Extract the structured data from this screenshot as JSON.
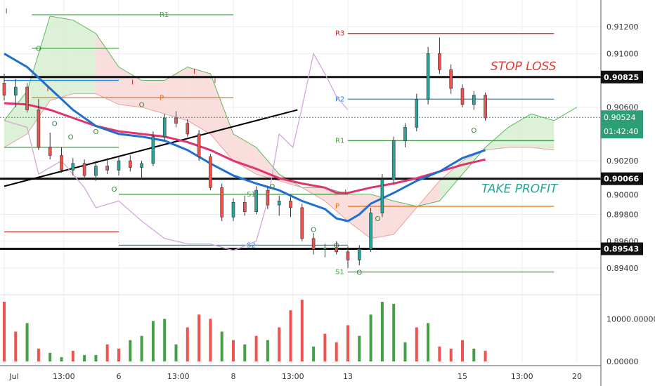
{
  "chart_data": {
    "type": "candlestick",
    "price_axis": {
      "range": [
        0.892,
        0.914
      ],
      "ticks": [
        "0.91200",
        "0.91000",
        "0.90600",
        "0.90200",
        "0.89800",
        "0.89600",
        "0.89400"
      ],
      "tick_values": [
        0.912,
        0.91,
        0.906,
        0.902,
        0.898,
        0.896,
        0.894
      ],
      "partial_tick": "0.90000",
      "partial_tick_value": 0.9
    },
    "volume_axis": {
      "ticks": [
        "10000.00000",
        "0.00000"
      ],
      "tick_values": [
        10000,
        0
      ],
      "max": 14000
    },
    "time_axis": {
      "labels": [
        "Jul",
        "13:00",
        "6",
        "13:00",
        "8",
        "13:00",
        "13",
        "15",
        "13:00",
        "20"
      ],
      "positions": [
        0,
        2.6,
        5.0,
        7.6,
        10.0,
        12.6,
        15.0,
        20.0,
        22.6,
        25.0
      ]
    },
    "current_price": {
      "value": 0.90524,
      "label": "0.90524",
      "countdown": "01:42:40"
    },
    "horizontal_levels": [
      {
        "name": "stop-loss-level",
        "value": 0.90825,
        "label": "0.90825",
        "text": "STOP LOSS",
        "color": "#e53935"
      },
      {
        "name": "take-profit-level",
        "value": 0.90066,
        "label": "0.90066",
        "text": "TAKE PROFIT",
        "color": "#26a69a"
      },
      {
        "name": "support-level",
        "value": 0.89543,
        "label": "0.89543",
        "text": "",
        "color": "#000000"
      }
    ],
    "pivot_levels": [
      {
        "label": "R1",
        "value": 0.9129,
        "x0": 1.2,
        "x1": 10.0,
        "color": "#43a047"
      },
      {
        "label": "",
        "value": 0.9104,
        "x0": 1.2,
        "x1": 5.0,
        "color": "#43a047"
      },
      {
        "label": "P",
        "value": 0.9067,
        "x0": 1.2,
        "x1": 10.0,
        "color": "#ef6c00"
      },
      {
        "label": "",
        "value": 0.908,
        "x0": 0,
        "x1": 5.0,
        "color": "#1e88e5"
      },
      {
        "label": "",
        "value": 0.903,
        "x0": 0,
        "x1": 5.0,
        "color": "#43a047"
      },
      {
        "label": "",
        "value": 0.9007,
        "x0": 0,
        "x1": 5.0,
        "color": "#1e88e5"
      },
      {
        "label": "S1",
        "value": 0.8995,
        "x0": 5.0,
        "x1": 15.0,
        "color": "#43a047"
      },
      {
        "label": "",
        "value": 0.8967,
        "x0": 0,
        "x1": 5.0,
        "color": "#c62828"
      },
      {
        "label": "S2",
        "value": 0.8957,
        "x0": 5.0,
        "x1": 15.0,
        "color": "#1e88e5"
      },
      {
        "label": "R3",
        "value": 0.9115,
        "x0": 15.0,
        "x1": 24.0,
        "color": "#c62828"
      },
      {
        "label": "R2",
        "value": 0.9066,
        "x0": 15.0,
        "x1": 24.0,
        "color": "#1e88e5"
      },
      {
        "label": "R1",
        "value": 0.9035,
        "x0": 15.0,
        "x1": 24.0,
        "color": "#43a047"
      },
      {
        "label": "P",
        "value": 0.8986,
        "x0": 15.0,
        "x1": 24.0,
        "color": "#ef6c00"
      },
      {
        "label": "S1",
        "value": 0.8937,
        "x0": 15.0,
        "x1": 24.0,
        "color": "#43a047"
      }
    ],
    "trendline": {
      "x0": 0,
      "y0": 0.9001,
      "x1": 12.8,
      "y1": 0.9058,
      "color": "#000000"
    },
    "ohlc": [
      [
        0.9078,
        0.9085,
        0.9065,
        0.9069
      ],
      [
        0.9069,
        0.9081,
        0.906,
        0.9075
      ],
      [
        0.9075,
        0.9078,
        0.9056,
        0.9058
      ],
      [
        0.9058,
        0.9066,
        0.9028,
        0.903
      ],
      [
        0.903,
        0.9041,
        0.9021,
        0.9024
      ],
      [
        0.9024,
        0.903,
        0.9011,
        0.9013
      ],
      [
        0.9013,
        0.9022,
        0.9009,
        0.9018
      ],
      [
        0.9018,
        0.9021,
        0.9006,
        0.9009
      ],
      [
        0.9009,
        0.902,
        0.9005,
        0.9016
      ],
      [
        0.9016,
        0.9022,
        0.901,
        0.9013
      ],
      [
        0.9013,
        0.9024,
        0.9009,
        0.902
      ],
      [
        0.902,
        0.9024,
        0.9012,
        0.9015
      ],
      [
        0.9015,
        0.902,
        0.9007,
        0.9018
      ],
      [
        0.9018,
        0.9042,
        0.9016,
        0.9038
      ],
      [
        0.9038,
        0.9055,
        0.9035,
        0.9052
      ],
      [
        0.9052,
        0.9057,
        0.9045,
        0.9048
      ],
      [
        0.9048,
        0.9051,
        0.9038,
        0.904
      ],
      [
        0.904,
        0.9043,
        0.902,
        0.9023
      ],
      [
        0.9023,
        0.9025,
        0.8998,
        0.9
      ],
      [
        0.9,
        0.9003,
        0.8975,
        0.8978
      ],
      [
        0.8978,
        0.8992,
        0.8975,
        0.8989
      ],
      [
        0.8989,
        0.8994,
        0.8979,
        0.8982
      ],
      [
        0.8982,
        0.9001,
        0.898,
        0.8998
      ],
      [
        0.8998,
        0.9,
        0.8984,
        0.8987
      ],
      [
        0.8987,
        0.8994,
        0.8979,
        0.899
      ],
      [
        0.899,
        0.8993,
        0.8978,
        0.8985
      ],
      [
        0.8985,
        0.8988,
        0.896,
        0.8962
      ],
      [
        0.8962,
        0.8966,
        0.895,
        0.8954
      ],
      [
        0.8954,
        0.8958,
        0.8948,
        0.8955
      ],
      [
        0.8955,
        0.896,
        0.895,
        0.8952
      ],
      [
        0.8952,
        0.8956,
        0.894,
        0.8946
      ],
      [
        0.8946,
        0.8957,
        0.8942,
        0.8954
      ],
      [
        0.8954,
        0.8985,
        0.8952,
        0.8981
      ],
      [
        0.8981,
        0.901,
        0.8978,
        0.9006
      ],
      [
        0.9006,
        0.9038,
        0.9003,
        0.9035
      ],
      [
        0.9035,
        0.9048,
        0.903,
        0.9045
      ],
      [
        0.9045,
        0.907,
        0.9042,
        0.9066
      ],
      [
        0.9066,
        0.9105,
        0.9062,
        0.91
      ],
      [
        0.91,
        0.9112,
        0.9085,
        0.9088
      ],
      [
        0.9088,
        0.9092,
        0.907,
        0.9074
      ],
      [
        0.9074,
        0.9077,
        0.906,
        0.9062
      ],
      [
        0.9062,
        0.9072,
        0.9058,
        0.9069
      ],
      [
        0.9069,
        0.9071,
        0.905,
        0.9052
      ]
    ],
    "ma_blue": [
      [
        0,
        0.91
      ],
      [
        1,
        0.909
      ],
      [
        2,
        0.9074
      ],
      [
        3,
        0.9058
      ],
      [
        4,
        0.9046
      ],
      [
        5,
        0.904
      ],
      [
        6,
        0.9038
      ],
      [
        7,
        0.9035
      ],
      [
        8,
        0.9028
      ],
      [
        9,
        0.9018
      ],
      [
        10,
        0.9009
      ],
      [
        11,
        0.9003
      ],
      [
        12,
        0.8998
      ],
      [
        13,
        0.899
      ],
      [
        14,
        0.8984
      ],
      [
        14.5,
        0.8977
      ],
      [
        15,
        0.8975
      ],
      [
        15.5,
        0.898
      ],
      [
        16,
        0.8988
      ],
      [
        17,
        0.8996
      ],
      [
        18,
        0.9005
      ],
      [
        19,
        0.9012
      ],
      [
        20,
        0.9022
      ],
      [
        21,
        0.9028
      ]
    ],
    "ma_pink": [
      [
        0,
        0.9063
      ],
      [
        1,
        0.9062
      ],
      [
        2,
        0.9058
      ],
      [
        3,
        0.9052
      ],
      [
        4,
        0.9046
      ],
      [
        5,
        0.9042
      ],
      [
        6,
        0.904
      ],
      [
        7,
        0.9038
      ],
      [
        8,
        0.9034
      ],
      [
        9,
        0.9028
      ],
      [
        10,
        0.902
      ],
      [
        11,
        0.9014
      ],
      [
        12,
        0.9007
      ],
      [
        13,
        0.9003
      ],
      [
        14,
        0.9
      ],
      [
        14.5,
        0.8996
      ],
      [
        15,
        0.8996
      ],
      [
        15.5,
        0.8998
      ],
      [
        16,
        0.9
      ],
      [
        17,
        0.9003
      ],
      [
        18,
        0.9007
      ],
      [
        19,
        0.9012
      ],
      [
        20,
        0.9017
      ],
      [
        21,
        0.9021
      ]
    ],
    "lagging_line": [
      [
        0,
        0.905
      ],
      [
        1,
        0.9045
      ],
      [
        1.5,
        0.901
      ],
      [
        2.5,
        0.902
      ],
      [
        3.5,
        0.9
      ],
      [
        4,
        0.8985
      ],
      [
        5,
        0.899
      ],
      [
        6,
        0.8975
      ],
      [
        7,
        0.8962
      ],
      [
        8,
        0.8958
      ],
      [
        9,
        0.8958
      ],
      [
        10,
        0.8953
      ],
      [
        11,
        0.896
      ],
      [
        11.5,
        0.899
      ],
      [
        12,
        0.904
      ],
      [
        12.6,
        0.903
      ],
      [
        13,
        0.906
      ],
      [
        13.5,
        0.91
      ],
      [
        14,
        0.9085
      ],
      [
        14.5,
        0.9068
      ],
      [
        15,
        0.9058
      ]
    ],
    "cloud_upper": [
      [
        0,
        0.905
      ],
      [
        1,
        0.9072
      ],
      [
        2,
        0.9128
      ],
      [
        3,
        0.9125
      ],
      [
        4,
        0.9115
      ],
      [
        5,
        0.909
      ],
      [
        6,
        0.908
      ],
      [
        7,
        0.908
      ],
      [
        8,
        0.909
      ],
      [
        9,
        0.9085
      ],
      [
        10,
        0.904
      ],
      [
        11,
        0.903
      ],
      [
        12,
        0.901
      ],
      [
        13,
        0.9
      ],
      [
        14,
        0.9
      ],
      [
        15,
        0.8995
      ],
      [
        16,
        0.8995
      ],
      [
        17,
        0.899
      ],
      [
        18,
        0.8986
      ],
      [
        19,
        0.899
      ],
      [
        20,
        0.901
      ],
      [
        21,
        0.903
      ],
      [
        22,
        0.9045
      ],
      [
        23,
        0.9055
      ],
      [
        24,
        0.905
      ],
      [
        25,
        0.906
      ]
    ],
    "cloud_lower": [
      [
        0,
        0.903
      ],
      [
        1,
        0.904
      ],
      [
        2,
        0.9065
      ],
      [
        3,
        0.907
      ],
      [
        4,
        0.907
      ],
      [
        5,
        0.9062
      ],
      [
        6,
        0.906
      ],
      [
        7,
        0.9055
      ],
      [
        8,
        0.905
      ],
      [
        9,
        0.904
      ],
      [
        10,
        0.902
      ],
      [
        11,
        0.901
      ],
      [
        12,
        0.9005
      ],
      [
        13,
        0.9
      ],
      [
        14,
        0.899
      ],
      [
        15,
        0.8975
      ],
      [
        16,
        0.8962
      ],
      [
        17,
        0.8965
      ],
      [
        18,
        0.8985
      ],
      [
        19,
        0.9005
      ],
      [
        20,
        0.902
      ],
      [
        21,
        0.9028
      ],
      [
        22,
        0.903
      ],
      [
        23,
        0.903
      ],
      [
        24,
        0.9028
      ]
    ],
    "markers": [
      {
        "t": "I",
        "x": 0.1,
        "v": 0.913
      },
      {
        "t": "O",
        "x": 1.5,
        "v": 0.9102
      },
      {
        "t": "I",
        "x": 1.9,
        "v": 0.9072
      },
      {
        "t": "O",
        "x": 2.2,
        "v": 0.9046
      },
      {
        "t": "O",
        "x": 2.9,
        "v": 0.9036
      },
      {
        "t": "O",
        "x": 4.0,
        "v": 0.904
      },
      {
        "t": "I",
        "x": 5.6,
        "v": 0.9077
      },
      {
        "t": "O",
        "x": 6.0,
        "v": 0.906
      },
      {
        "t": "I",
        "x": 8.3,
        "v": 0.9085
      },
      {
        "t": "I",
        "x": 9.2,
        "v": 0.9078
      },
      {
        "t": "O",
        "x": 4.8,
        "v": 0.8997
      },
      {
        "t": "O",
        "x": 11.7,
        "v": 0.8999
      },
      {
        "t": "O",
        "x": 14.5,
        "v": 0.8955
      },
      {
        "t": "I",
        "x": 14.9,
        "v": 0.8995
      },
      {
        "t": "O",
        "x": 13.5,
        "v": 0.8967
      },
      {
        "t": "O",
        "x": 15.5,
        "v": 0.8935
      },
      {
        "t": "O",
        "x": 20.5,
        "v": 0.9041
      },
      {
        "t": "O",
        "x": 16.3,
        "v": 0.8975
      }
    ],
    "volume": [
      [
        14000,
        "r"
      ],
      [
        7000,
        "r"
      ],
      [
        9000,
        "g"
      ],
      [
        3000,
        "r"
      ],
      [
        2000,
        "g"
      ],
      [
        1000,
        "g"
      ],
      [
        2500,
        "r"
      ],
      [
        1500,
        "g"
      ],
      [
        1500,
        "g"
      ],
      [
        4000,
        "r"
      ],
      [
        3000,
        "r"
      ],
      [
        5000,
        "g"
      ],
      [
        6000,
        "g"
      ],
      [
        9500,
        "g"
      ],
      [
        10000,
        "g"
      ],
      [
        4000,
        "g"
      ],
      [
        8000,
        "r"
      ],
      [
        11000,
        "r"
      ],
      [
        10000,
        "r"
      ],
      [
        7000,
        "g"
      ],
      [
        5000,
        "r"
      ],
      [
        4000,
        "g"
      ],
      [
        6000,
        "r"
      ],
      [
        5000,
        "g"
      ],
      [
        8000,
        "r"
      ],
      [
        12000,
        "r"
      ],
      [
        14500,
        "r"
      ],
      [
        3500,
        "g"
      ],
      [
        6500,
        "r"
      ],
      [
        4500,
        "r"
      ],
      [
        8500,
        "r"
      ],
      [
        6000,
        "g"
      ],
      [
        11000,
        "g"
      ],
      [
        14000,
        "g"
      ],
      [
        13500,
        "g"
      ],
      [
        4500,
        "g"
      ],
      [
        8000,
        "r"
      ],
      [
        9000,
        "g"
      ],
      [
        3500,
        "r"
      ],
      [
        3000,
        "r"
      ],
      [
        5000,
        "r"
      ],
      [
        3000,
        "g"
      ],
      [
        2500,
        "r"
      ]
    ]
  },
  "colors": {
    "up": "#26a69a",
    "down": "#ef5350",
    "vol_up": "#43a047",
    "vol_down": "#ef5350",
    "ma_blue": "#1e6fd0",
    "ma_pink": "#e0336f",
    "lagging": "#d3a6dd",
    "cloud_bull_fill": "#d8efd3",
    "cloud_bull_line": "#5cb85c",
    "cloud_bear_fill": "#f9d9d9",
    "cloud_bear_line": "#e8a0a0",
    "current_price_box": "#2e9e75",
    "grid": "#eeeeee"
  }
}
